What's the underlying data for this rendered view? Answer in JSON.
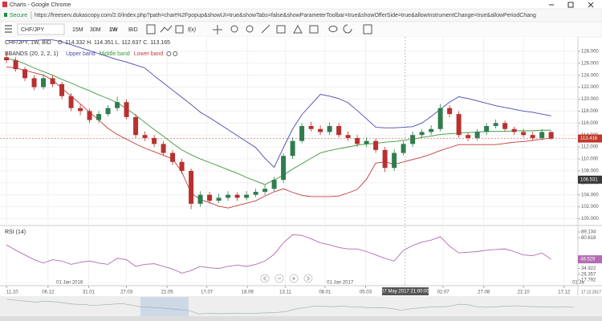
{
  "window": {
    "title": "Charts - Google Chrome",
    "secure": "Secure",
    "url": "https://freeserv.dukascopy.com/2.0/index.php?path=chart%2Fpopup&showUI=true&showTabs=false&showParameterToolbar=true&showOfferSide=true&allowInstrumentChange=true&allowPeriodChang"
  },
  "toolbar": {
    "symbol": "CHF/JPY",
    "periods": [
      "15M",
      "30M",
      "1W"
    ],
    "side": "BID",
    "fx": "f(x)"
  },
  "chart_data": {
    "type": "candlestick",
    "title": "CHF/JPY, 1W, BID",
    "ohlc_label": "O. 114.332 H. 114.351 L. 112.637 C. 113.165",
    "up_color": "#2f7d4f",
    "down_color": "#b8312f",
    "candles": [
      [
        127.0,
        127.8,
        126.0,
        126.5
      ],
      [
        126.5,
        127.0,
        124.6,
        125.0
      ],
      [
        125.0,
        125.4,
        123.0,
        123.5
      ],
      [
        123.5,
        124.0,
        121.5,
        122.0
      ],
      [
        122.0,
        124.2,
        121.6,
        123.5
      ],
      [
        123.5,
        124.0,
        122.0,
        122.5
      ],
      [
        122.5,
        122.9,
        120.0,
        120.5
      ],
      [
        120.5,
        121.0,
        118.0,
        118.5
      ],
      [
        118.5,
        119.2,
        117.3,
        118.0
      ],
      [
        118.0,
        118.4,
        116.0,
        116.5
      ],
      [
        116.5,
        118.0,
        116.0,
        117.5
      ],
      [
        117.5,
        119.0,
        117.1,
        118.5
      ],
      [
        118.5,
        120.4,
        118.0,
        119.5
      ],
      [
        119.5,
        120.0,
        116.6,
        117.0
      ],
      [
        117.0,
        117.5,
        113.5,
        114.0
      ],
      [
        114.0,
        114.6,
        113.0,
        113.5
      ],
      [
        113.5,
        114.0,
        112.0,
        112.5
      ],
      [
        112.5,
        113.0,
        110.6,
        111.0
      ],
      [
        111.0,
        111.5,
        109.0,
        109.5
      ],
      [
        109.5,
        110.0,
        107.5,
        108.0
      ],
      [
        108.0,
        108.4,
        101.6,
        102.5
      ],
      [
        102.5,
        104.6,
        102.0,
        104.0
      ],
      [
        104.0,
        104.5,
        102.5,
        103.0
      ],
      [
        103.0,
        104.2,
        102.6,
        103.5
      ],
      [
        103.5,
        104.6,
        103.0,
        104.0
      ],
      [
        104.0,
        104.4,
        103.0,
        103.5
      ],
      [
        103.5,
        104.6,
        103.1,
        104.0
      ],
      [
        104.0,
        105.0,
        103.6,
        104.5
      ],
      [
        104.5,
        105.6,
        104.0,
        105.0
      ],
      [
        105.0,
        107.0,
        104.6,
        106.5
      ],
      [
        106.5,
        111.0,
        106.0,
        110.5
      ],
      [
        110.5,
        113.6,
        110.0,
        113.0
      ],
      [
        113.0,
        116.0,
        112.6,
        115.5
      ],
      [
        115.5,
        116.2,
        114.6,
        115.0
      ],
      [
        115.0,
        115.6,
        114.0,
        114.5
      ],
      [
        114.5,
        116.1,
        114.0,
        115.5
      ],
      [
        115.5,
        116.0,
        113.6,
        114.0
      ],
      [
        114.0,
        114.6,
        113.0,
        113.5
      ],
      [
        113.5,
        114.0,
        112.0,
        112.5
      ],
      [
        112.5,
        113.6,
        112.0,
        113.0
      ],
      [
        113.0,
        113.4,
        111.0,
        111.5
      ],
      [
        111.5,
        112.0,
        107.8,
        108.5
      ],
      [
        108.5,
        111.6,
        108.0,
        111.0
      ],
      [
        111.0,
        113.0,
        110.6,
        112.5
      ],
      [
        112.5,
        114.6,
        112.0,
        114.0
      ],
      [
        114.0,
        115.0,
        113.5,
        114.5
      ],
      [
        114.5,
        115.6,
        114.0,
        115.0
      ],
      [
        115.0,
        119.2,
        114.6,
        118.5
      ],
      [
        118.5,
        119.0,
        117.0,
        117.5
      ],
      [
        117.5,
        118.0,
        113.5,
        114.0
      ],
      [
        114.0,
        114.5,
        113.0,
        113.5
      ],
      [
        113.5,
        115.0,
        113.1,
        114.5
      ],
      [
        114.5,
        116.0,
        114.0,
        115.5
      ],
      [
        115.5,
        116.6,
        115.1,
        116.0
      ],
      [
        116.0,
        116.4,
        114.6,
        115.0
      ],
      [
        115.0,
        115.4,
        114.0,
        114.5
      ],
      [
        114.5,
        115.0,
        113.6,
        114.0
      ],
      [
        114.0,
        114.5,
        113.0,
        113.5
      ],
      [
        113.5,
        115.0,
        113.1,
        114.5
      ],
      [
        114.5,
        114.6,
        113.2,
        113.4
      ]
    ],
    "xlim": [
      -0.7,
      61.9
    ],
    "ylim": [
      99,
      130.4
    ],
    "yticks": [
      {
        "value": 100,
        "label": "100.000"
      },
      {
        "value": 102,
        "label": "102.000"
      },
      {
        "value": 104,
        "label": "104.000"
      },
      {
        "value": 106,
        "label": "106.000"
      },
      {
        "value": 108,
        "label": "108.000"
      },
      {
        "value": 110,
        "label": "110.000"
      },
      {
        "value": 112,
        "label": "112.000"
      },
      {
        "value": 114,
        "label": "114.000"
      },
      {
        "value": 116,
        "label": "116.000"
      },
      {
        "value": 118,
        "label": "118.000"
      },
      {
        "value": 120,
        "label": "120.000"
      },
      {
        "value": 122,
        "label": "122.000"
      },
      {
        "value": 124,
        "label": "124.000"
      },
      {
        "value": 126,
        "label": "126.000"
      },
      {
        "value": 128,
        "label": "128.000"
      }
    ],
    "xticks": [
      {
        "value": 0,
        "label": "11.10"
      },
      {
        "value": 4.5,
        "label": "06.12"
      },
      {
        "value": 8.9,
        "label": "31.01"
      },
      {
        "value": 13.0,
        "label": "27.03"
      },
      {
        "value": 17.4,
        "label": "22.05"
      },
      {
        "value": 21.7,
        "label": "17.07"
      },
      {
        "value": 26.1,
        "label": "18.09"
      },
      {
        "value": 30.2,
        "label": "13.11"
      },
      {
        "value": 34.5,
        "label": "08.01"
      },
      {
        "value": 38.9,
        "label": "05.03"
      },
      {
        "value": 47.3,
        "label": "02.07"
      },
      {
        "value": 51.7,
        "label": "27.08"
      },
      {
        "value": 56.0,
        "label": "22.10"
      },
      {
        "value": 60.4,
        "label": "17.12"
      }
    ],
    "year_labels": [
      {
        "value": 5.4,
        "label": "01 Jan 2016"
      },
      {
        "value": 34.7,
        "label": "01 Jan 2017"
      },
      {
        "value": 61.3,
        "label": "01 Ja"
      }
    ],
    "axis_end_label": "17.12.2017",
    "crosshair": {
      "value": 43.2,
      "label": "07 May 2017 21:00:00"
    },
    "grid": true,
    "last_price": 113.416,
    "last_price_color": "#c0392b",
    "marker_price": 106.531,
    "marker_color": "#3a3a3a",
    "overlay": {
      "name": "BBANDS (20, 2, 2, 1)",
      "series": [
        {
          "name": "Upper band",
          "color": "#4a4ab0",
          "values": [
            129.8,
            129.8,
            129.8,
            129.8,
            129.9,
            129.9,
            129.6,
            129.1,
            128.6,
            128.1,
            127.6,
            127.1,
            126.6,
            126.2,
            125.7,
            125.2,
            123.9,
            122.7,
            121.5,
            120.3,
            119.1,
            117.8,
            116.9,
            115.9,
            114.9,
            113.9,
            112.9,
            111.9,
            110.1,
            108.6,
            111.9,
            115.0,
            117.4,
            119.1,
            120.8,
            120.5,
            120.1,
            119.4,
            118.1,
            116.7,
            115.3,
            115.2,
            115.2,
            115.3,
            115.4,
            116.0,
            117.1,
            118.3,
            119.5,
            120.4,
            120.1,
            119.7,
            119.3,
            118.9,
            118.6,
            118.3,
            118.0,
            117.8,
            117.5,
            117.2
          ]
        },
        {
          "name": "Middle band",
          "color": "#3d9a3d",
          "values": [
            126.8,
            126.5,
            125.9,
            125.2,
            124.6,
            124.0,
            123.3,
            122.7,
            122.0,
            121.4,
            120.7,
            120.1,
            119.4,
            118.4,
            117.3,
            116.1,
            114.9,
            113.8,
            112.6,
            111.5,
            110.7,
            110.0,
            109.4,
            108.8,
            108.2,
            107.6,
            106.9,
            106.3,
            105.7,
            106.5,
            107.3,
            108.3,
            109.2,
            110.1,
            111.0,
            111.4,
            111.7,
            112.0,
            112.3,
            112.5,
            112.6,
            112.8,
            112.9,
            113.1,
            113.3,
            113.6,
            113.8,
            114.1,
            114.2,
            114.3,
            114.4,
            114.5,
            114.6,
            114.6,
            114.6,
            114.7,
            114.7,
            114.7,
            114.8,
            114.8
          ]
        },
        {
          "name": "Lower band",
          "color": "#c43c3c",
          "values": [
            125.4,
            125.2,
            124.8,
            124.4,
            124.0,
            123.2,
            121.8,
            120.5,
            119.2,
            117.8,
            116.5,
            115.1,
            114.1,
            113.3,
            112.5,
            111.8,
            111.2,
            110.6,
            110.0,
            107.8,
            104.3,
            103.2,
            102.7,
            102.1,
            101.8,
            102.2,
            102.6,
            103.0,
            103.8,
            104.5,
            105.0,
            104.4,
            103.9,
            103.7,
            103.7,
            103.7,
            103.8,
            104.3,
            104.9,
            106.6,
            109.3,
            109.5,
            109.1,
            109.5,
            109.9,
            110.3,
            110.8,
            111.4,
            111.9,
            112.4,
            112.4,
            112.4,
            112.4,
            112.4,
            112.6,
            112.8,
            112.9,
            113.1,
            113.3,
            113.5
          ]
        }
      ]
    },
    "indicator": {
      "name": "RSI (14)",
      "color": "#b36bb3",
      "values": [
        70,
        62,
        55,
        48,
        43,
        48,
        46,
        41,
        44,
        46,
        43,
        41,
        50,
        48,
        38,
        41,
        42,
        38,
        34,
        28,
        32,
        38,
        36,
        35,
        38,
        40,
        38,
        41,
        46,
        56,
        73,
        85,
        84,
        79,
        73,
        70,
        66,
        64,
        64,
        60,
        55,
        50,
        46,
        62,
        69,
        74,
        77,
        82,
        68,
        58,
        59,
        60,
        62,
        63,
        64,
        60,
        55,
        54,
        58,
        48.5
      ],
      "ylim": [
        10.6,
        97.5
      ],
      "yticks": [
        89.134,
        80.618,
        34.922,
        26.357,
        17.792
      ],
      "last": 48.529
    }
  }
}
